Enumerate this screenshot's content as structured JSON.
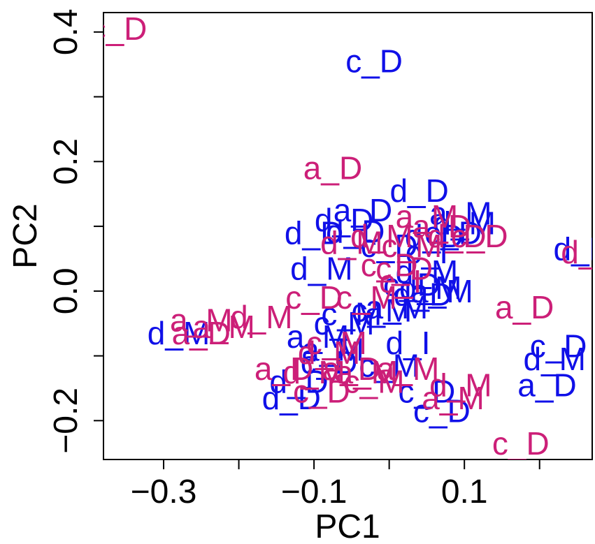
{
  "chart_data": {
    "type": "scatter",
    "title": "",
    "xlabel": "PC1",
    "ylabel": "PC2",
    "xlim": [
      -0.38,
      0.27
    ],
    "ylim": [
      -0.26,
      0.43
    ],
    "xticks": [
      -0.3,
      -0.2,
      -0.1,
      0.0,
      0.1,
      0.2
    ],
    "xtick_labels": [
      "−0.3",
      "",
      "−0.1",
      "",
      "0.1",
      ""
    ],
    "yticks": [
      -0.2,
      -0.1,
      0.0,
      0.1,
      0.2,
      0.3,
      0.4
    ],
    "ytick_labels": [
      "−0.2",
      "",
      "0.0",
      "",
      "0.2",
      "",
      "0.4"
    ],
    "grid": false,
    "legend": "none",
    "colors": {
      "blue": "#1010e8",
      "magenta": "#cc1f78"
    },
    "series": [
      {
        "color": "blue",
        "points": [
          {
            "x": -0.02,
            "y": 0.355,
            "label": "c_D"
          },
          {
            "x": 0.04,
            "y": 0.155,
            "label": "d_D"
          },
          {
            "x": -0.035,
            "y": 0.125,
            "label": "a_D"
          },
          {
            "x": -0.06,
            "y": 0.11,
            "label": "d_D"
          },
          {
            "x": 0.095,
            "y": 0.12,
            "label": "a_M"
          },
          {
            "x": 0.1,
            "y": 0.105,
            "label": "d_M"
          },
          {
            "x": -0.045,
            "y": 0.092,
            "label": "d_D"
          },
          {
            "x": -0.1,
            "y": 0.09,
            "label": "d_D"
          },
          {
            "x": 0.06,
            "y": 0.085,
            "label": "d_D"
          },
          {
            "x": 0.085,
            "y": 0.09,
            "label": "c_D"
          },
          {
            "x": 0.0,
            "y": 0.07,
            "label": "c_D"
          },
          {
            "x": 0.05,
            "y": 0.06,
            "label": "c_I"
          },
          {
            "x": 0.05,
            "y": 0.03,
            "label": "d_M"
          },
          {
            "x": -0.09,
            "y": 0.035,
            "label": "d_M"
          },
          {
            "x": 0.055,
            "y": 0.005,
            "label": "d_M"
          },
          {
            "x": 0.07,
            "y": 0.0,
            "label": "a_M"
          },
          {
            "x": 0.03,
            "y": 0.01,
            "label": "c_D"
          },
          {
            "x": 0.045,
            "y": -0.005,
            "label": "d_D"
          },
          {
            "x": -0.05,
            "y": -0.035,
            "label": "c_M"
          },
          {
            "x": -0.01,
            "y": -0.03,
            "label": "c_M"
          },
          {
            "x": 0.01,
            "y": -0.025,
            "label": "a_M"
          },
          {
            "x": -0.28,
            "y": -0.065,
            "label": "d_M"
          },
          {
            "x": -0.095,
            "y": -0.07,
            "label": "a_M"
          },
          {
            "x": 0.025,
            "y": -0.08,
            "label": "d_I"
          },
          {
            "x": -0.075,
            "y": -0.09,
            "label": "a_M"
          },
          {
            "x": -0.08,
            "y": -0.11,
            "label": "c_D"
          },
          {
            "x": 0.0,
            "y": -0.115,
            "label": "c_M"
          },
          {
            "x": -0.12,
            "y": -0.14,
            "label": "d_D"
          },
          {
            "x": -0.13,
            "y": -0.165,
            "label": "d_D"
          },
          {
            "x": 0.05,
            "y": -0.155,
            "label": "c_D"
          },
          {
            "x": 0.07,
            "y": -0.185,
            "label": "c_D"
          },
          {
            "x": 0.21,
            "y": -0.145,
            "label": "a_D"
          },
          {
            "x": 0.225,
            "y": -0.085,
            "label": "c_D"
          },
          {
            "x": 0.22,
            "y": -0.105,
            "label": "d_M"
          },
          {
            "x": 0.26,
            "y": 0.065,
            "label": "d_M"
          },
          {
            "x": -0.06,
            "y": -0.05,
            "label": "c_M"
          }
        ]
      },
      {
        "color": "magenta",
        "points": [
          {
            "x": -0.36,
            "y": 0.405,
            "label": "c_D"
          },
          {
            "x": -0.075,
            "y": 0.19,
            "label": "a_D"
          },
          {
            "x": 0.05,
            "y": 0.115,
            "label": "a_M"
          },
          {
            "x": 0.07,
            "y": 0.1,
            "label": "a_D"
          },
          {
            "x": -0.01,
            "y": 0.085,
            "label": "d_M"
          },
          {
            "x": -0.05,
            "y": 0.075,
            "label": "d_M"
          },
          {
            "x": 0.09,
            "y": 0.085,
            "label": "d_D"
          },
          {
            "x": 0.12,
            "y": 0.085,
            "label": "c_D"
          },
          {
            "x": 0.03,
            "y": 0.07,
            "label": "c_M"
          },
          {
            "x": 0.0,
            "y": 0.04,
            "label": "c_D"
          },
          {
            "x": 0.02,
            "y": 0.035,
            "label": "c_D"
          },
          {
            "x": 0.015,
            "y": 0.015,
            "label": "c_I"
          },
          {
            "x": -0.1,
            "y": -0.01,
            "label": "c_D"
          },
          {
            "x": -0.03,
            "y": -0.01,
            "label": "c_M"
          },
          {
            "x": -0.17,
            "y": -0.04,
            "label": "d_M"
          },
          {
            "x": -0.25,
            "y": -0.045,
            "label": "a_M"
          },
          {
            "x": -0.25,
            "y": -0.065,
            "label": "a_D"
          },
          {
            "x": -0.22,
            "y": -0.055,
            "label": "a_M"
          },
          {
            "x": -0.07,
            "y": -0.08,
            "label": "c_M"
          },
          {
            "x": -0.08,
            "y": -0.095,
            "label": "d_M"
          },
          {
            "x": -0.14,
            "y": -0.12,
            "label": "a_D"
          },
          {
            "x": -0.1,
            "y": -0.125,
            "label": "d_M"
          },
          {
            "x": -0.05,
            "y": -0.12,
            "label": "a_D"
          },
          {
            "x": -0.03,
            "y": -0.125,
            "label": "a_M"
          },
          {
            "x": 0.025,
            "y": -0.12,
            "label": "a_M"
          },
          {
            "x": -0.02,
            "y": -0.14,
            "label": "c_M"
          },
          {
            "x": -0.09,
            "y": -0.155,
            "label": "c_D"
          },
          {
            "x": 0.095,
            "y": -0.145,
            "label": "d_M"
          },
          {
            "x": 0.085,
            "y": -0.165,
            "label": "a_M"
          },
          {
            "x": 0.18,
            "y": -0.025,
            "label": "a_D"
          },
          {
            "x": 0.175,
            "y": -0.235,
            "label": "c_D"
          },
          {
            "x": 0.27,
            "y": 0.06,
            "label": "d_M"
          }
        ]
      }
    ]
  }
}
